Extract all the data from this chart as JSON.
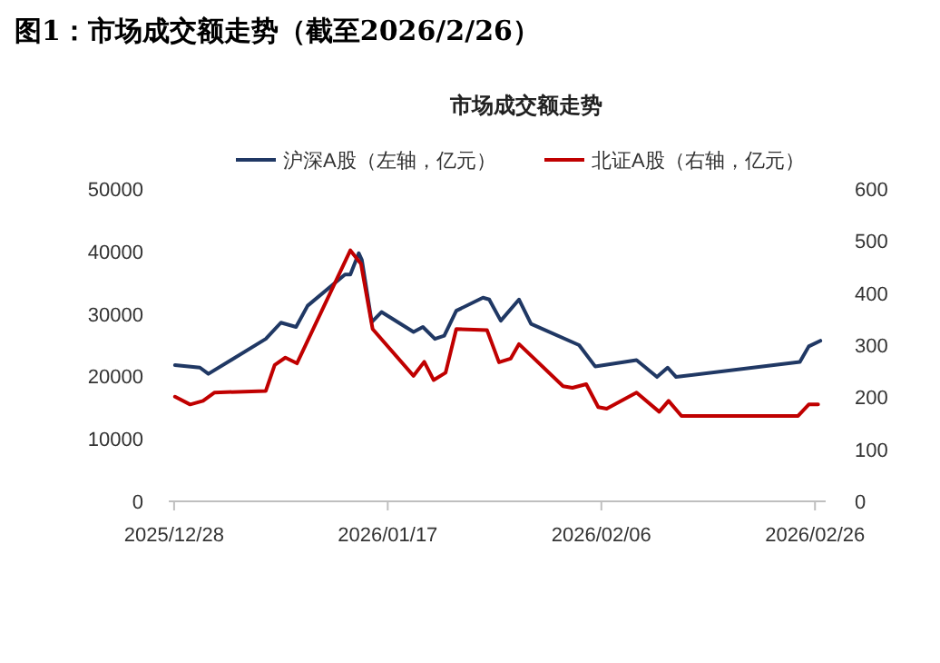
{
  "chart_data": {
    "type": "line",
    "title": "图1：市场成交额走势（截至2026/2/26）",
    "subtitle": "市场成交额走势",
    "legend": "top",
    "xlim": [
      "2025-12-27T12:00",
      "2026-02-27T00:00"
    ],
    "xticks": [
      {
        "value": "2025-12-28",
        "label": "2025/12/28"
      },
      {
        "value": "2026-01-17",
        "label": "2026/01/17"
      },
      {
        "value": "2026-02-06",
        "label": "2026/02/06"
      },
      {
        "value": "2026-02-26",
        "label": "2026/02/26"
      }
    ],
    "ylim": [
      0,
      50000
    ],
    "yticks": [
      0,
      10000,
      20000,
      30000,
      40000,
      50000
    ],
    "y2lim": [
      0,
      600
    ],
    "y2ticks": [
      0,
      100,
      200,
      300,
      400,
      500,
      600
    ],
    "series": [
      {
        "name": "沪深A股（左轴，亿元）",
        "color": "#203864",
        "axis": "y",
        "x": [
          "2025-12-28T02:00",
          "2025-12-30T10:00",
          "2025-12-31T05:00",
          "2026-01-05T14:00",
          "2026-01-07T00:00",
          "2026-01-08T10:00",
          "2026-01-09T12:00",
          "2026-01-13T00:00",
          "2026-01-13T12:00",
          "2026-01-14T07:00",
          "2026-01-14T14:00",
          "2026-01-15T12:00",
          "2026-01-16T10:00",
          "2026-01-19T10:00",
          "2026-01-20T07:00",
          "2026-01-21T10:00",
          "2026-01-22T07:00",
          "2026-01-23T10:00",
          "2026-01-25T22:00",
          "2026-01-26T12:00",
          "2026-01-27T14:00",
          "2026-01-29T07:00",
          "2026-01-30T10:00",
          "2026-02-03T22:00",
          "2026-02-05T10:00",
          "2026-02-09T07:00",
          "2026-02-11T05:00",
          "2026-02-12T05:00",
          "2026-02-13T00:00",
          "2026-02-24T14:00",
          "2026-02-25T10:00",
          "2026-02-26T12:00"
        ],
        "values": [
          21800,
          21400,
          20400,
          26000,
          28600,
          27900,
          31300,
          36300,
          36300,
          39700,
          38600,
          28700,
          30300,
          27100,
          27900,
          26000,
          26500,
          30500,
          32600,
          32300,
          28900,
          32300,
          28400,
          25000,
          21600,
          22600,
          19900,
          21400,
          19900,
          22300,
          24800,
          25700
        ]
      },
      {
        "name": "北证A股（右轴，亿元）",
        "color": "#c00000",
        "axis": "y2",
        "x": [
          "2025-12-28T02:00",
          "2025-12-29T12:00",
          "2025-12-30T17:00",
          "2025-12-31T19:00",
          "2026-01-05T14:00",
          "2026-01-06T10:00",
          "2026-01-07T10:00",
          "2026-01-08T12:00",
          "2026-01-13T12:00",
          "2026-01-14T12:00",
          "2026-01-15T14:00",
          "2026-01-19T10:00",
          "2026-01-20T10:00",
          "2026-01-21T07:00",
          "2026-01-22T10:00",
          "2026-01-23T10:00",
          "2026-01-26T07:00",
          "2026-01-27T10:00",
          "2026-01-28T12:00",
          "2026-01-29T07:00",
          "2026-02-02T10:00",
          "2026-02-03T07:00",
          "2026-02-04T14:00",
          "2026-02-05T17:00",
          "2026-02-06T12:00",
          "2026-02-09T07:00",
          "2026-02-11T10:00",
          "2026-02-12T07:00",
          "2026-02-13T12:00",
          "2026-02-24T10:00",
          "2026-02-25T10:00",
          "2026-02-26T07:00"
        ],
        "values": [
          201,
          186,
          193,
          209,
          212,
          262,
          276,
          265,
          482,
          456,
          331,
          241,
          268,
          233,
          247,
          331,
          329,
          267,
          274,
          302,
          221,
          218,
          225,
          181,
          178,
          209,
          172,
          193,
          164,
          164,
          186,
          186
        ]
      }
    ]
  }
}
